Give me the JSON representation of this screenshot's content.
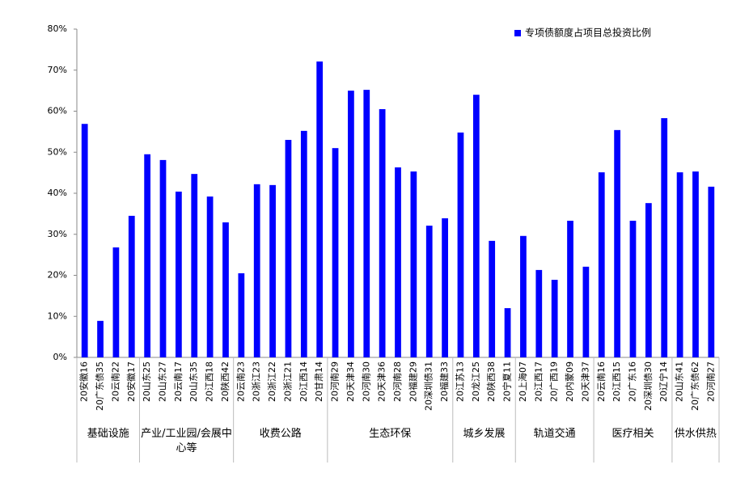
{
  "chart_data": {
    "type": "bar",
    "ylim": [
      0,
      80
    ],
    "yticks": [
      {
        "value": 0,
        "label": "0%"
      },
      {
        "value": 10,
        "label": "10%"
      },
      {
        "value": 20,
        "label": "20%"
      },
      {
        "value": 30,
        "label": "30%"
      },
      {
        "value": 40,
        "label": "40%"
      },
      {
        "value": 50,
        "label": "50%"
      },
      {
        "value": 60,
        "label": "60%"
      },
      {
        "value": 70,
        "label": "70%"
      },
      {
        "value": 80,
        "label": "80%"
      }
    ],
    "legend": "top-right",
    "category_groups": [
      {
        "name": "基础设施",
        "categories": [
          "20安徽16",
          "20广东债35",
          "20云南22",
          "20安徽17"
        ]
      },
      {
        "name": "产业/工业园/会展中心等",
        "categories": [
          "20山东25",
          "20山东27",
          "20云南17",
          "20山东35",
          "20江西18",
          "20陕西42"
        ]
      },
      {
        "name": "收费公路",
        "categories": [
          "20云南23",
          "20浙江23",
          "20浙江22",
          "20浙江21",
          "20江西14",
          "20甘肃14"
        ]
      },
      {
        "name": "生态环保",
        "categories": [
          "20河南29",
          "20天津34",
          "20河南30",
          "20天津36",
          "20河南28",
          "20福建29",
          "20深圳债31",
          "20福建33"
        ]
      },
      {
        "name": "城乡发展",
        "categories": [
          "20江苏13",
          "20龙江25",
          "20陕西38",
          "20宁夏11"
        ]
      },
      {
        "name": "轨道交通",
        "categories": [
          "20上海07",
          "20江西17",
          "20广西19",
          "20内蒙09",
          "20天津37"
        ]
      },
      {
        "name": "医疗相关",
        "categories": [
          "20云南16",
          "20江西15",
          "20广东16",
          "20深圳债30",
          "20辽宁14"
        ]
      },
      {
        "name": "供水供热",
        "categories": [
          "20山东41",
          "20广东债62",
          "20河南27"
        ]
      }
    ],
    "series": [
      {
        "name": "专项债额度占项目总投资比例",
        "color": "#0000ff",
        "values": [
          56.9,
          8.9,
          26.8,
          34.5,
          49.5,
          48.1,
          40.4,
          44.7,
          39.2,
          32.9,
          20.5,
          42.2,
          42.0,
          53.0,
          55.2,
          72.1,
          51.0,
          65.0,
          65.2,
          60.5,
          46.3,
          45.3,
          32.1,
          33.9,
          54.8,
          64.0,
          28.4,
          12.0,
          29.6,
          21.3,
          18.9,
          33.3,
          22.1,
          45.1,
          55.4,
          33.3,
          37.6,
          58.3,
          45.1,
          45.3,
          41.6
        ]
      }
    ]
  }
}
